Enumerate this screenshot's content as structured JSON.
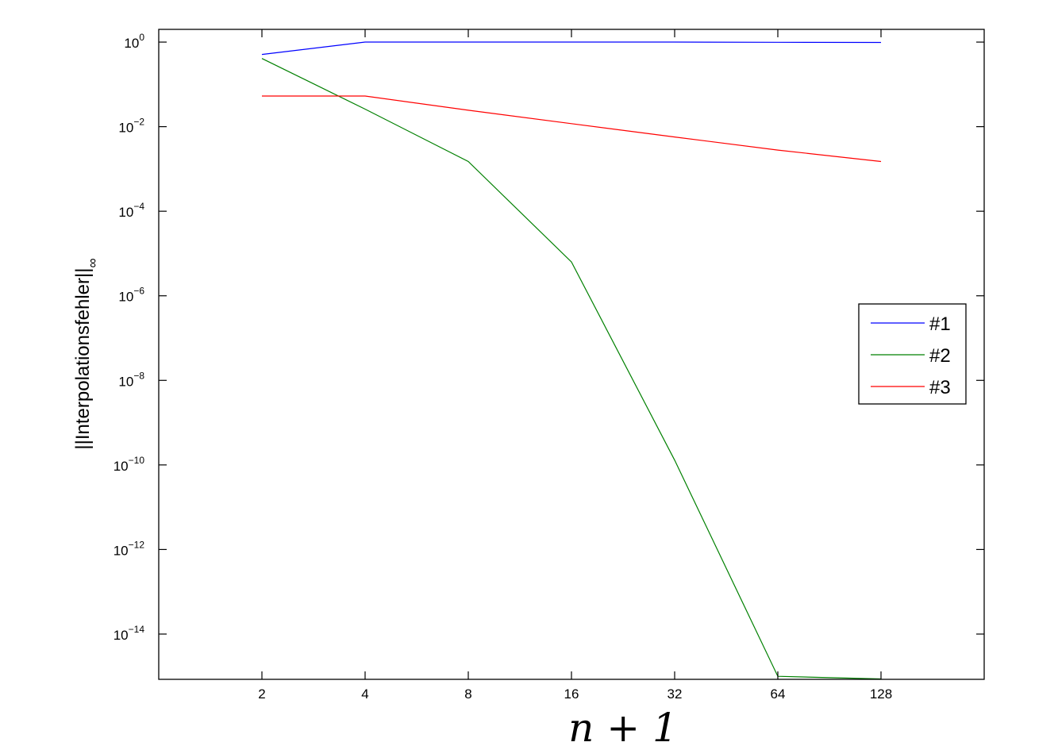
{
  "chart_data": {
    "type": "line",
    "title": "",
    "xlabel": "n + 1",
    "ylabel": "||Interpolationsfehler||",
    "ylabel_subscript": "∞",
    "x_scale": "log2",
    "y_scale": "log10",
    "x": [
      2,
      4,
      8,
      16,
      32,
      64,
      128
    ],
    "xlim": [
      1,
      256
    ],
    "ylim": [
      8.5e-16,
      2
    ],
    "x_ticks": [
      "2",
      "4",
      "8",
      "16",
      "32",
      "64",
      "128"
    ],
    "y_ticks": [
      {
        "base": "10",
        "exp": "0",
        "value": 1
      },
      {
        "base": "10",
        "exp": "−2",
        "value": 0.01
      },
      {
        "base": "10",
        "exp": "−4",
        "value": 0.0001
      },
      {
        "base": "10",
        "exp": "−6",
        "value": 1e-06
      },
      {
        "base": "10",
        "exp": "−8",
        "value": 1e-08
      },
      {
        "base": "10",
        "exp": "−10",
        "value": 1e-10
      },
      {
        "base": "10",
        "exp": "−12",
        "value": 1e-12
      },
      {
        "base": "10",
        "exp": "−14",
        "value": 1e-14
      }
    ],
    "grid": false,
    "legend_position": "right",
    "series": [
      {
        "name": "#1",
        "color": "#0000ff",
        "values": [
          0.51,
          1.0,
          1.0,
          1.0,
          1.0,
          0.99,
          0.98
        ]
      },
      {
        "name": "#2",
        "color": "#008000",
        "values": [
          0.41,
          0.026,
          0.0015,
          6.3e-06,
          1.3e-10,
          1e-15,
          8.7e-16
        ]
      },
      {
        "name": "#3",
        "color": "#ff0000",
        "values": [
          0.053,
          0.053,
          0.0245,
          0.0118,
          0.0057,
          0.0028,
          0.0015
        ]
      }
    ]
  }
}
